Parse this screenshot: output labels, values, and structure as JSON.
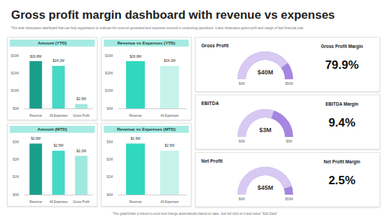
{
  "title": "Gross profit margin dashboard with revenue vs expenses",
  "subtitle": "This slide showcases dashboard that can help organization to evaluate the revenue generated and expenses incurred in conducting operations. It also showcases gross profit and margin of last financial year.",
  "footer": "This graph/chart is linked to excel and change automatically based on data. Just left click on it and select \"Edit Data\"",
  "chart_data": [
    {
      "type": "bar",
      "title": "Amount (YTD)",
      "categories": [
        "Revenue",
        "All Expenses",
        "Gross Profit"
      ],
      "values": [
        26.8,
        24.2,
        2.5
      ],
      "value_labels": [
        "$26.8M",
        "$24.2M",
        "$2.5M"
      ],
      "colors": [
        "#1a9e8c",
        "#45d9c6",
        "#9fe9df"
      ],
      "ylim": [
        0,
        30
      ],
      "yticks": [
        {
          "value": 0,
          "label": "$0M"
        },
        {
          "value": 10,
          "label": "$10M"
        },
        {
          "value": 20,
          "label": "$20M"
        },
        {
          "value": 30,
          "label": "$30M"
        }
      ],
      "data_labels": true,
      "grid": false
    },
    {
      "type": "bar",
      "title": "Revenue vs Expenses (YTD)",
      "categories": [
        "Revenue",
        "All Expenses"
      ],
      "values": [
        26.8,
        24.2
      ],
      "value_labels": [
        "$26.8M",
        "$24.2M"
      ],
      "colors": [
        "#2fd8bf",
        "#c5f3ec"
      ],
      "ylim": [
        0,
        30
      ],
      "yticks": [
        {
          "value": 0,
          "label": "$0M"
        },
        {
          "value": 10,
          "label": "$10M"
        },
        {
          "value": 20,
          "label": "$20M"
        },
        {
          "value": 30,
          "label": "$30M"
        }
      ],
      "data_labels": true,
      "grid": false
    },
    {
      "type": "bar",
      "title": "Amount (MTD)",
      "categories": [
        "Revenue",
        "All Expenses",
        "Gross Profit"
      ],
      "values": [
        2.9,
        2.5,
        2.2
      ],
      "value_labels": [
        "$2.9M",
        "$2.5M",
        "$2.2M"
      ],
      "colors": [
        "#1a9e8c",
        "#45d9c6",
        "#9fe9df"
      ],
      "ylim": [
        0,
        3
      ],
      "yticks": [
        {
          "value": 0,
          "label": "$0M"
        },
        {
          "value": 1,
          "label": "$1M"
        },
        {
          "value": 2,
          "label": "$2M"
        },
        {
          "value": 3,
          "label": "$3M"
        }
      ],
      "data_labels": true,
      "grid": false
    },
    {
      "type": "bar",
      "title": "Revenue vs Expenses (MTD)",
      "categories": [
        "Revenue",
        "All Expenses"
      ],
      "values": [
        2.9,
        2.5
      ],
      "value_labels": [
        "$2.9M",
        "$2.5M"
      ],
      "colors": [
        "#2fd8bf",
        "#c5f3ec"
      ],
      "ylim": [
        0,
        3
      ],
      "yticks": [
        {
          "value": 0,
          "label": "$0M"
        },
        {
          "value": 1,
          "label": "$1M"
        },
        {
          "value": 2,
          "label": "$2M"
        },
        {
          "value": 3,
          "label": "$3M"
        }
      ],
      "data_labels": true,
      "grid": false
    },
    {
      "type": "gauge",
      "title": "Gross Profit",
      "value": 40,
      "value_label": "$40M",
      "range": [
        0,
        50
      ],
      "range_labels": [
        "$0M",
        "$50M"
      ],
      "colors": [
        "#d7c9f2",
        "#a586e0"
      ],
      "metric_title": "Gross Profit Margin",
      "metric_label": "79.9%"
    },
    {
      "type": "gauge",
      "title": "EBITDA",
      "value": 3,
      "value_label": "$3M",
      "range": [
        0,
        5
      ],
      "range_labels": [
        "$0M",
        "$5M"
      ],
      "colors": [
        "#d7c9f2",
        "#a586e0"
      ],
      "metric_title": "EBITDA Margin",
      "metric_label": "9.4%"
    },
    {
      "type": "gauge",
      "title": "Net Profit",
      "value": 45,
      "value_label": "$45M",
      "range": [
        0,
        50
      ],
      "range_labels": [
        "$0M",
        "$50M"
      ],
      "colors": [
        "#d7c9f2",
        "#a586e0"
      ],
      "metric_title": "Net Profit Margin",
      "metric_label": "2.5%"
    }
  ]
}
